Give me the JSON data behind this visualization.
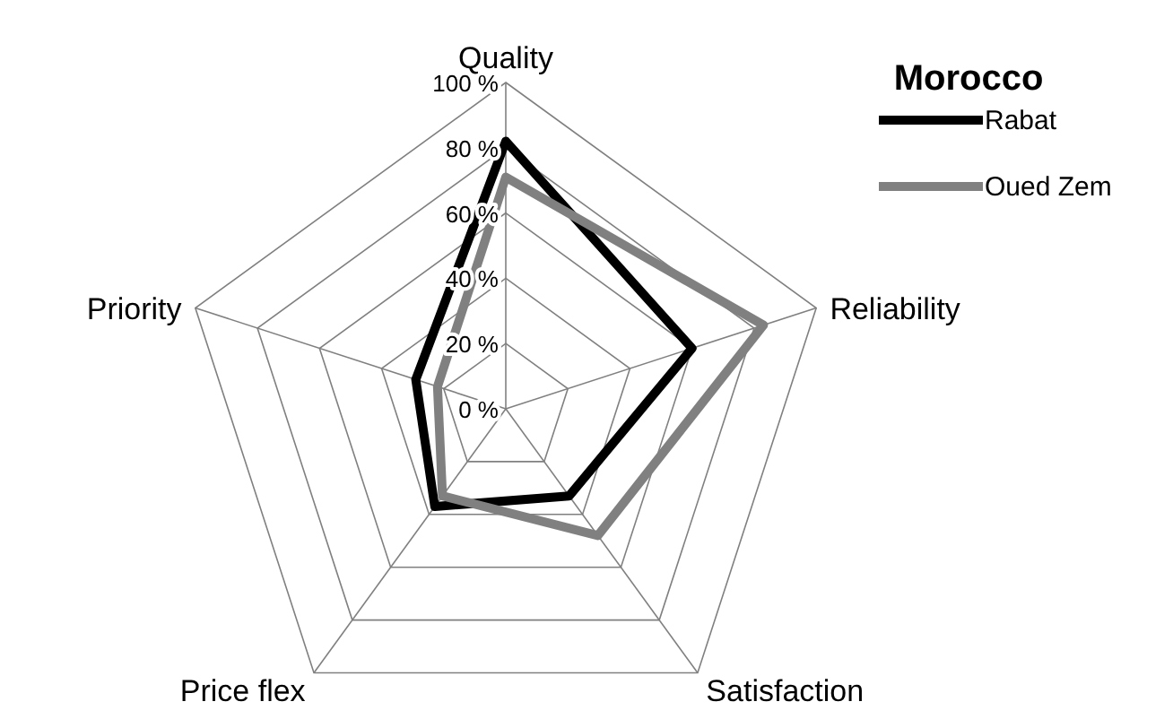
{
  "chart_data": {
    "type": "radar",
    "legend_title": "Morocco",
    "categories": [
      "Quality",
      "Reliability",
      "Satisfaction",
      "Price flex",
      "Priority"
    ],
    "series": [
      {
        "name": "Rabat",
        "color": "#000000",
        "values": [
          82,
          60,
          33,
          37,
          29
        ]
      },
      {
        "name": "Oued Zem",
        "color": "#808080",
        "values": [
          71,
          83,
          48,
          33,
          22
        ]
      }
    ],
    "ylim": [
      0,
      100
    ],
    "yticks": [
      {
        "value": 0,
        "label": "0 %"
      },
      {
        "value": 20,
        "label": "20 %"
      },
      {
        "value": 40,
        "label": "40 %"
      },
      {
        "value": 60,
        "label": "60 %"
      },
      {
        "value": 80,
        "label": "80 %"
      },
      {
        "value": 100,
        "label": "100 %"
      }
    ],
    "grid": true,
    "legend": "top right",
    "marker": "none"
  }
}
